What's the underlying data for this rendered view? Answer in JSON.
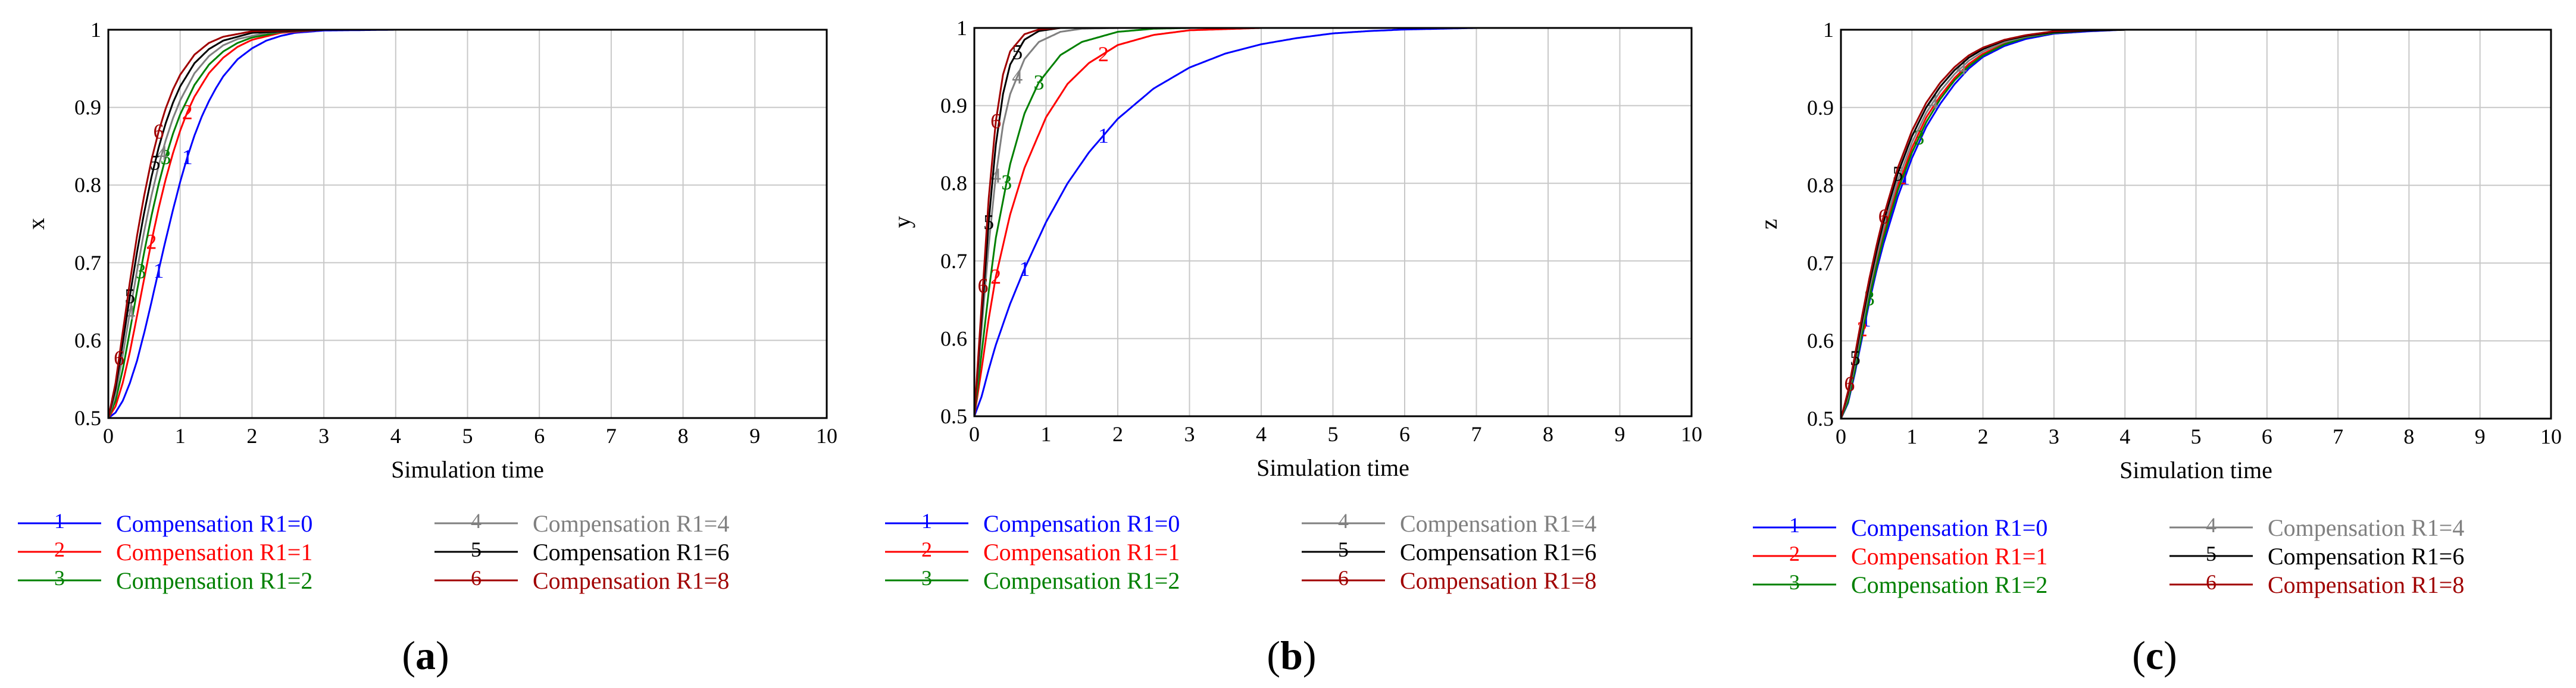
{
  "chart_data": [
    {
      "type": "line",
      "panel": "a",
      "xlabel": "Simulation time",
      "ylabel": "x",
      "xlim": [
        0,
        10
      ],
      "ylim": [
        0.5,
        1
      ],
      "xticks": [
        "0",
        "1",
        "2",
        "3",
        "4",
        "5",
        "6",
        "7",
        "8",
        "9",
        "10"
      ],
      "yticks": [
        "0.5",
        "0.6",
        "0.7",
        "0.8",
        "0.9",
        "1"
      ],
      "grid": true,
      "series": [
        {
          "name": "Compensation R1=0",
          "marker": "1",
          "color": "#0000ff",
          "x": [
            0,
            0.1,
            0.2,
            0.3,
            0.4,
            0.5,
            0.6,
            0.7,
            0.8,
            0.9,
            1,
            1.1,
            1.2,
            1.3,
            1.4,
            1.5,
            1.6,
            1.8,
            2,
            2.2,
            2.4,
            2.6,
            3,
            4,
            10
          ],
          "y": [
            0.5,
            0.507,
            0.522,
            0.545,
            0.574,
            0.61,
            0.649,
            0.69,
            0.73,
            0.768,
            0.804,
            0.836,
            0.864,
            0.888,
            0.908,
            0.925,
            0.94,
            0.962,
            0.976,
            0.986,
            0.992,
            0.996,
            0.999,
            1,
            1
          ]
        },
        {
          "name": "Compensation R1=1",
          "marker": "2",
          "color": "#ff0000",
          "x": [
            0,
            0.1,
            0.2,
            0.3,
            0.4,
            0.5,
            0.6,
            0.7,
            0.8,
            0.9,
            1,
            1.1,
            1.2,
            1.4,
            1.6,
            1.8,
            2,
            2.4,
            3,
            10
          ],
          "y": [
            0.5,
            0.515,
            0.545,
            0.585,
            0.632,
            0.68,
            0.727,
            0.77,
            0.808,
            0.841,
            0.87,
            0.894,
            0.914,
            0.944,
            0.964,
            0.978,
            0.987,
            0.996,
            1,
            1
          ]
        },
        {
          "name": "Compensation R1=2",
          "marker": "3",
          "color": "#008000",
          "x": [
            0,
            0.1,
            0.2,
            0.3,
            0.4,
            0.5,
            0.6,
            0.7,
            0.8,
            0.9,
            1,
            1.2,
            1.4,
            1.6,
            1.8,
            2,
            2.4,
            3,
            10
          ],
          "y": [
            0.5,
            0.522,
            0.562,
            0.612,
            0.664,
            0.714,
            0.76,
            0.801,
            0.836,
            0.866,
            0.891,
            0.929,
            0.955,
            0.972,
            0.983,
            0.99,
            0.997,
            1,
            1
          ]
        },
        {
          "name": "Compensation R1=4",
          "marker": "4",
          "color": "#808080",
          "x": [
            0,
            0.1,
            0.2,
            0.3,
            0.4,
            0.5,
            0.6,
            0.7,
            0.8,
            0.9,
            1,
            1.2,
            1.4,
            1.6,
            1.8,
            2.2,
            3,
            10
          ],
          "y": [
            0.5,
            0.53,
            0.58,
            0.636,
            0.69,
            0.741,
            0.786,
            0.825,
            0.858,
            0.886,
            0.909,
            0.944,
            0.966,
            0.98,
            0.988,
            0.996,
            1,
            1
          ]
        },
        {
          "name": "Compensation R1=6",
          "marker": "5",
          "color": "#000000",
          "x": [
            0,
            0.1,
            0.2,
            0.3,
            0.4,
            0.5,
            0.6,
            0.7,
            0.8,
            0.9,
            1,
            1.2,
            1.4,
            1.6,
            2,
            3,
            10
          ],
          "y": [
            0.5,
            0.538,
            0.596,
            0.657,
            0.714,
            0.765,
            0.81,
            0.848,
            0.88,
            0.906,
            0.927,
            0.957,
            0.975,
            0.986,
            0.996,
            1,
            1
          ]
        },
        {
          "name": "Compensation R1=8",
          "marker": "6",
          "color": "#a00000",
          "x": [
            0,
            0.1,
            0.2,
            0.3,
            0.4,
            0.5,
            0.6,
            0.7,
            0.8,
            0.9,
            1,
            1.2,
            1.4,
            1.6,
            2,
            3,
            10
          ],
          "y": [
            0.5,
            0.545,
            0.61,
            0.675,
            0.735,
            0.787,
            0.832,
            0.869,
            0.899,
            0.923,
            0.942,
            0.968,
            0.983,
            0.991,
            0.998,
            1,
            1
          ]
        }
      ]
    },
    {
      "type": "line",
      "panel": "b",
      "xlabel": "Simulation time",
      "ylabel": "y",
      "xlim": [
        0,
        10
      ],
      "ylim": [
        0.5,
        1
      ],
      "xticks": [
        "0",
        "1",
        "2",
        "3",
        "4",
        "5",
        "6",
        "7",
        "8",
        "9",
        "10"
      ],
      "yticks": [
        "0.5",
        "0.6",
        "0.7",
        "0.8",
        "0.9",
        "1"
      ],
      "grid": true,
      "series": [
        {
          "name": "Compensation R1=0",
          "marker": "1",
          "color": "#0000ff",
          "x": [
            0,
            0.1,
            0.2,
            0.3,
            0.5,
            0.7,
            1,
            1.3,
            1.6,
            2,
            2.5,
            3,
            3.5,
            4,
            4.5,
            5,
            5.5,
            6,
            7,
            8,
            10
          ],
          "y": [
            0.5,
            0.525,
            0.56,
            0.592,
            0.645,
            0.69,
            0.75,
            0.8,
            0.84,
            0.883,
            0.922,
            0.949,
            0.967,
            0.979,
            0.987,
            0.993,
            0.996,
            0.998,
            1,
            1,
            1
          ]
        },
        {
          "name": "Compensation R1=1",
          "marker": "2",
          "color": "#ff0000",
          "x": [
            0,
            0.1,
            0.2,
            0.3,
            0.5,
            0.7,
            1,
            1.3,
            1.6,
            2,
            2.5,
            3,
            4,
            5,
            10
          ],
          "y": [
            0.5,
            0.56,
            0.625,
            0.68,
            0.76,
            0.82,
            0.885,
            0.928,
            0.955,
            0.978,
            0.991,
            0.997,
            1,
            1,
            1
          ]
        },
        {
          "name": "Compensation R1=2",
          "marker": "3",
          "color": "#008000",
          "x": [
            0,
            0.1,
            0.2,
            0.3,
            0.5,
            0.7,
            0.9,
            1.2,
            1.5,
            2,
            2.5,
            3,
            4,
            10
          ],
          "y": [
            0.5,
            0.58,
            0.66,
            0.73,
            0.825,
            0.89,
            0.93,
            0.965,
            0.982,
            0.995,
            0.999,
            1,
            1,
            1
          ]
        },
        {
          "name": "Compensation R1=4",
          "marker": "4",
          "color": "#808080",
          "x": [
            0,
            0.1,
            0.2,
            0.3,
            0.4,
            0.5,
            0.7,
            0.9,
            1.2,
            1.5,
            2,
            3,
            10
          ],
          "y": [
            0.5,
            0.61,
            0.72,
            0.81,
            0.875,
            0.915,
            0.96,
            0.982,
            0.995,
            0.999,
            1,
            1,
            1
          ]
        },
        {
          "name": "Compensation R1=6",
          "marker": "5",
          "color": "#000000",
          "x": [
            0,
            0.1,
            0.2,
            0.3,
            0.4,
            0.5,
            0.7,
            0.9,
            1.2,
            1.5,
            2,
            3,
            10
          ],
          "y": [
            0.5,
            0.625,
            0.75,
            0.85,
            0.915,
            0.953,
            0.985,
            0.996,
            1,
            1,
            1,
            1,
            1
          ]
        },
        {
          "name": "Compensation R1=8",
          "marker": "6",
          "color": "#a00000",
          "x": [
            0,
            0.1,
            0.2,
            0.3,
            0.4,
            0.5,
            0.7,
            0.9,
            1.2,
            1.5,
            2,
            3,
            10
          ],
          "y": [
            0.5,
            0.64,
            0.78,
            0.88,
            0.94,
            0.97,
            0.992,
            0.998,
            1,
            1,
            1,
            1,
            1
          ]
        }
      ]
    },
    {
      "type": "line",
      "panel": "c",
      "xlabel": "Simulation time",
      "ylabel": "z",
      "xlim": [
        0,
        10
      ],
      "ylim": [
        0.5,
        1
      ],
      "xticks": [
        "0",
        "1",
        "2",
        "3",
        "4",
        "5",
        "6",
        "7",
        "8",
        "9",
        "10"
      ],
      "yticks": [
        "0.5",
        "0.6",
        "0.7",
        "0.8",
        "0.9",
        "1"
      ],
      "grid": true,
      "series": [
        {
          "name": "Compensation R1=0",
          "marker": "1",
          "color": "#0000ff",
          "x": [
            0,
            0.1,
            0.2,
            0.3,
            0.4,
            0.5,
            0.6,
            0.8,
            1,
            1.2,
            1.4,
            1.6,
            1.8,
            2,
            2.3,
            2.6,
            3,
            3.5,
            4,
            5,
            10
          ],
          "y": [
            0.5,
            0.52,
            0.56,
            0.605,
            0.65,
            0.69,
            0.725,
            0.785,
            0.835,
            0.875,
            0.905,
            0.93,
            0.95,
            0.965,
            0.979,
            0.988,
            0.995,
            0.998,
            1,
            1,
            1
          ]
        },
        {
          "name": "Compensation R1=1",
          "marker": "2",
          "color": "#ff0000",
          "x": [
            0,
            0.1,
            0.2,
            0.3,
            0.4,
            0.5,
            0.6,
            0.8,
            1,
            1.2,
            1.4,
            1.6,
            1.8,
            2,
            2.3,
            2.6,
            3,
            3.5,
            4,
            10
          ],
          "y": [
            0.5,
            0.525,
            0.568,
            0.615,
            0.66,
            0.7,
            0.737,
            0.798,
            0.848,
            0.887,
            0.915,
            0.938,
            0.956,
            0.969,
            0.982,
            0.99,
            0.996,
            0.999,
            1,
            1
          ]
        },
        {
          "name": "Compensation R1=2",
          "marker": "3",
          "color": "#008000",
          "x": [
            0,
            0.1,
            0.2,
            0.3,
            0.4,
            0.5,
            0.6,
            0.8,
            1,
            1.2,
            1.4,
            1.6,
            1.8,
            2,
            2.3,
            2.6,
            3,
            3.5,
            4,
            10
          ],
          "y": [
            0.5,
            0.522,
            0.564,
            0.61,
            0.655,
            0.695,
            0.732,
            0.793,
            0.842,
            0.881,
            0.911,
            0.935,
            0.953,
            0.967,
            0.981,
            0.99,
            0.996,
            0.999,
            1,
            1
          ]
        },
        {
          "name": "Compensation R1=4",
          "marker": "4",
          "color": "#808080",
          "x": [
            0,
            0.1,
            0.2,
            0.3,
            0.4,
            0.5,
            0.6,
            0.8,
            1,
            1.2,
            1.4,
            1.6,
            1.8,
            2,
            2.3,
            2.6,
            3,
            3.5,
            4,
            10
          ],
          "y": [
            0.5,
            0.528,
            0.572,
            0.62,
            0.666,
            0.707,
            0.744,
            0.806,
            0.855,
            0.893,
            0.921,
            0.943,
            0.96,
            0.972,
            0.984,
            0.991,
            0.997,
            0.999,
            1,
            1
          ]
        },
        {
          "name": "Compensation R1=6",
          "marker": "5",
          "color": "#000000",
          "x": [
            0,
            0.1,
            0.2,
            0.3,
            0.4,
            0.5,
            0.6,
            0.8,
            1,
            1.2,
            1.4,
            1.6,
            1.8,
            2,
            2.3,
            2.6,
            3,
            3.5,
            4,
            10
          ],
          "y": [
            0.5,
            0.532,
            0.578,
            0.627,
            0.673,
            0.715,
            0.753,
            0.815,
            0.863,
            0.9,
            0.927,
            0.948,
            0.964,
            0.975,
            0.986,
            0.992,
            0.997,
            0.999,
            1,
            1
          ]
        },
        {
          "name": "Compensation R1=8",
          "marker": "6",
          "color": "#a00000",
          "x": [
            0,
            0.1,
            0.2,
            0.3,
            0.4,
            0.5,
            0.6,
            0.8,
            1,
            1.2,
            1.4,
            1.6,
            1.8,
            2,
            2.3,
            2.6,
            3,
            3.5,
            4,
            10
          ],
          "y": [
            0.5,
            0.535,
            0.583,
            0.633,
            0.68,
            0.722,
            0.76,
            0.822,
            0.87,
            0.906,
            0.932,
            0.952,
            0.967,
            0.977,
            0.987,
            0.993,
            0.998,
            1,
            1,
            1
          ]
        }
      ]
    }
  ],
  "panel_labels": [
    "(a)",
    "(b)",
    "(c)"
  ]
}
